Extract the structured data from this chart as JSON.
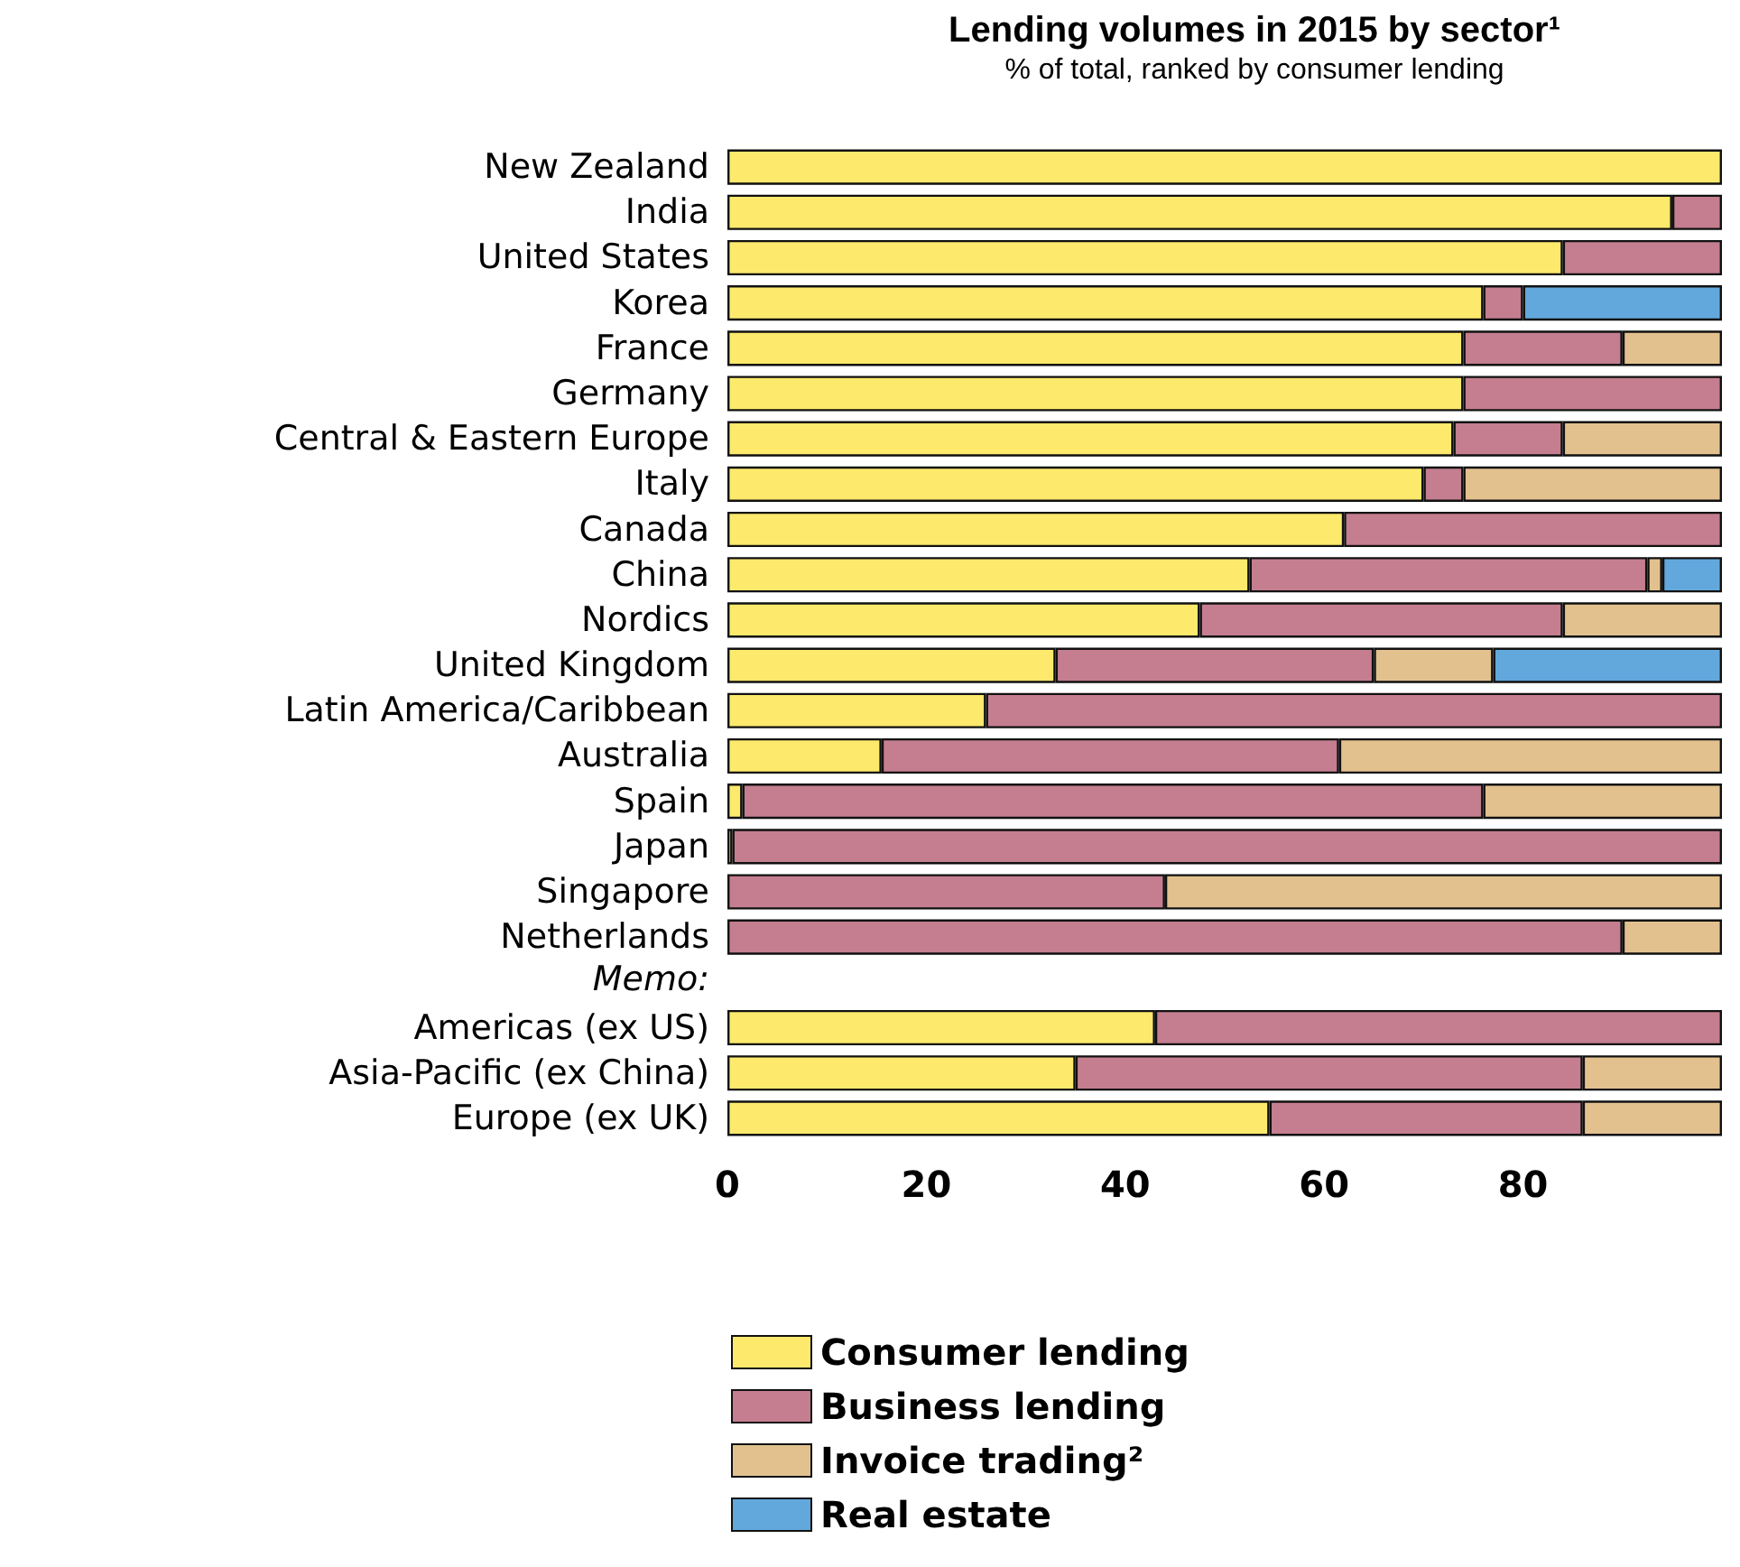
{
  "chart_data": {
    "type": "bar",
    "orientation": "horizontal",
    "stacked": true,
    "title": "Lending volumes in 2015 by sector¹",
    "subtitle": "% of total, ranked by consumer lending",
    "categories": [
      "New Zealand",
      "India",
      "United States",
      "Korea",
      "France",
      "Germany",
      "Central & Eastern Europe",
      "Italy",
      "Canada",
      "China",
      "Nordics",
      "United Kingdom",
      "Latin America/Caribbean",
      "Australia",
      "Spain",
      "Japan",
      "Singapore",
      "Netherlands",
      null,
      "Americas (ex US)",
      "Asia-Pacific (ex China)",
      "Europe (ex UK)"
    ],
    "series": [
      {
        "name": "Consumer lending",
        "color": "#fde96c",
        "values": [
          100,
          95,
          84,
          76,
          74,
          74,
          73,
          70,
          62,
          52.5,
          47.5,
          33,
          26,
          15.5,
          1.5,
          0.5,
          null,
          null,
          null,
          43,
          35,
          54.5
        ]
      },
      {
        "name": "Business lending",
        "color": "#c47e8f",
        "values": [
          null,
          5,
          16,
          4,
          16,
          26,
          11,
          4,
          38,
          40,
          36.5,
          32,
          74,
          46,
          74.5,
          99.5,
          44,
          90,
          null,
          57,
          51,
          31.5
        ]
      },
      {
        "name": "Invoice trading²",
        "color": "#e2c18f",
        "values": [
          null,
          null,
          null,
          null,
          10,
          null,
          16,
          26,
          null,
          1.5,
          16,
          12,
          null,
          38.5,
          24,
          null,
          56,
          10,
          null,
          null,
          14,
          14
        ]
      },
      {
        "name": "Real estate",
        "color": "#62a8dc",
        "values": [
          null,
          null,
          null,
          20,
          null,
          null,
          null,
          null,
          null,
          6,
          null,
          23,
          null,
          null,
          null,
          null,
          null,
          null,
          null,
          null,
          null,
          null
        ]
      }
    ],
    "xlim": [
      0,
      100
    ],
    "xticks": [
      0,
      20,
      40,
      60,
      80
    ],
    "legend": "bottom",
    "annotations": [
      "Memo:"
    ]
  }
}
